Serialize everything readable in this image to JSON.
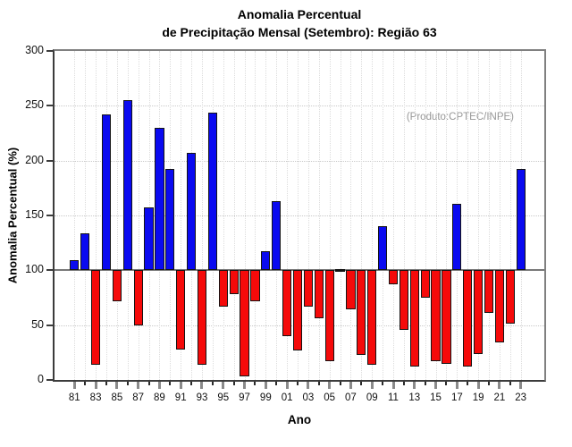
{
  "title": {
    "line1": "Anomalia Percentual",
    "line2": "de Precipitação Mensal (Setembro): Região 63"
  },
  "annotation": "(Produto:CPTEC/INPE)",
  "axes": {
    "y_label": "Anomalia Percentual (%)",
    "x_label": "Ano",
    "y_tick_labels": [
      "0",
      "50",
      "100",
      "150",
      "200",
      "250",
      "300"
    ],
    "x_tick_labels": [
      "81",
      "83",
      "85",
      "87",
      "89",
      "91",
      "93",
      "95",
      "97",
      "99",
      "01",
      "03",
      "05",
      "07",
      "09",
      "11",
      "13",
      "15",
      "17",
      "19",
      "21",
      "23"
    ]
  },
  "colors": {
    "above_baseline": "#0a0af0",
    "below_baseline": "#f50a0a",
    "neutral": "#111111",
    "baseline_line": "#787878",
    "annotation_text": "#979797"
  },
  "chart_data": {
    "type": "bar",
    "title": "Anomalia Percentual de Precipitação Mensal (Setembro): Região 63",
    "xlabel": "Ano",
    "ylabel": "Anomalia Percentual (%)",
    "ylim": [
      0,
      300
    ],
    "y_ticks": [
      0,
      50,
      100,
      150,
      200,
      250,
      300
    ],
    "baseline": 100,
    "grid": "dotted-horizontal-and-vertical",
    "legend": "none",
    "categories": [
      1981,
      1982,
      1983,
      1984,
      1985,
      1986,
      1987,
      1988,
      1989,
      1990,
      1991,
      1992,
      1993,
      1994,
      1995,
      1996,
      1997,
      1998,
      1999,
      2000,
      2001,
      2002,
      2003,
      2004,
      2005,
      2006,
      2007,
      2008,
      2009,
      2010,
      2011,
      2012,
      2013,
      2014,
      2015,
      2016,
      2017,
      2018,
      2019,
      2020,
      2021,
      2022,
      2023
    ],
    "values": [
      109,
      134,
      14,
      242,
      72,
      255,
      50,
      157,
      230,
      192,
      28,
      207,
      14,
      244,
      67,
      78,
      3,
      72,
      117,
      163,
      40,
      27,
      67,
      56,
      17,
      100,
      64,
      23,
      14,
      140,
      87,
      46,
      12,
      75,
      17,
      15,
      161,
      12,
      24,
      61,
      34,
      51,
      192
    ],
    "color_rule": "value > 100 blue, value < 100 red, value = 100 flat black segment at baseline"
  }
}
